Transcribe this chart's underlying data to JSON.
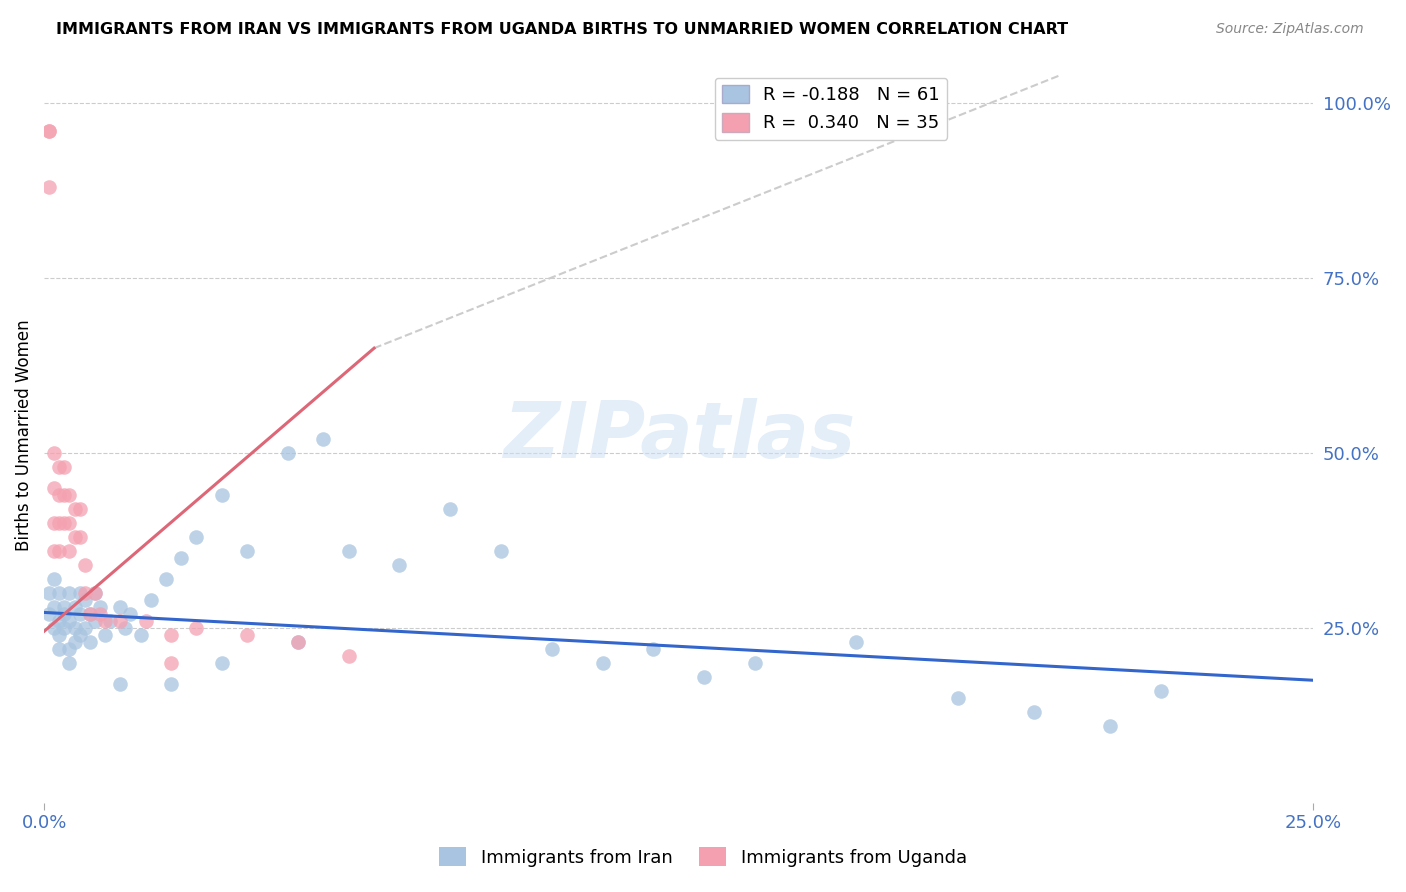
{
  "title": "IMMIGRANTS FROM IRAN VS IMMIGRANTS FROM UGANDA BIRTHS TO UNMARRIED WOMEN CORRELATION CHART",
  "source": "Source: ZipAtlas.com",
  "ylabel": "Births to Unmarried Women",
  "right_yticks": [
    "100.0%",
    "75.0%",
    "50.0%",
    "25.0%"
  ],
  "right_ytick_vals": [
    1.0,
    0.75,
    0.5,
    0.25
  ],
  "xlim": [
    0.0,
    0.25
  ],
  "ylim": [
    0.0,
    1.05
  ],
  "iran_color": "#a8c4e0",
  "uganda_color": "#f4a0b0",
  "iran_line_color": "#3366cc",
  "uganda_line_color": "#dd6677",
  "watermark_text": "ZIPatlas",
  "iran_scatter_x": [
    0.001,
    0.001,
    0.002,
    0.002,
    0.002,
    0.003,
    0.003,
    0.003,
    0.003,
    0.004,
    0.004,
    0.004,
    0.005,
    0.005,
    0.005,
    0.006,
    0.006,
    0.006,
    0.007,
    0.007,
    0.007,
    0.008,
    0.008,
    0.009,
    0.009,
    0.01,
    0.01,
    0.011,
    0.012,
    0.013,
    0.015,
    0.016,
    0.017,
    0.019,
    0.021,
    0.024,
    0.027,
    0.03,
    0.035,
    0.04,
    0.048,
    0.055,
    0.06,
    0.07,
    0.08,
    0.09,
    0.1,
    0.11,
    0.12,
    0.13,
    0.14,
    0.16,
    0.18,
    0.195,
    0.21,
    0.22,
    0.05,
    0.035,
    0.025,
    0.015,
    0.005
  ],
  "iran_scatter_y": [
    0.3,
    0.27,
    0.32,
    0.25,
    0.28,
    0.3,
    0.26,
    0.24,
    0.22,
    0.28,
    0.25,
    0.27,
    0.3,
    0.26,
    0.22,
    0.28,
    0.25,
    0.23,
    0.3,
    0.27,
    0.24,
    0.29,
    0.25,
    0.27,
    0.23,
    0.3,
    0.26,
    0.28,
    0.24,
    0.26,
    0.28,
    0.25,
    0.27,
    0.24,
    0.29,
    0.32,
    0.35,
    0.38,
    0.44,
    0.36,
    0.5,
    0.52,
    0.36,
    0.34,
    0.42,
    0.36,
    0.22,
    0.2,
    0.22,
    0.18,
    0.2,
    0.23,
    0.15,
    0.13,
    0.11,
    0.16,
    0.23,
    0.2,
    0.17,
    0.17,
    0.2
  ],
  "uganda_scatter_x": [
    0.001,
    0.001,
    0.001,
    0.002,
    0.002,
    0.002,
    0.002,
    0.003,
    0.003,
    0.003,
    0.003,
    0.004,
    0.004,
    0.004,
    0.005,
    0.005,
    0.005,
    0.006,
    0.006,
    0.007,
    0.007,
    0.008,
    0.008,
    0.009,
    0.01,
    0.011,
    0.012,
    0.015,
    0.02,
    0.025,
    0.025,
    0.03,
    0.04,
    0.05,
    0.06
  ],
  "uganda_scatter_y": [
    0.88,
    0.96,
    0.96,
    0.5,
    0.45,
    0.4,
    0.36,
    0.48,
    0.44,
    0.4,
    0.36,
    0.48,
    0.44,
    0.4,
    0.44,
    0.4,
    0.36,
    0.42,
    0.38,
    0.42,
    0.38,
    0.34,
    0.3,
    0.27,
    0.3,
    0.27,
    0.26,
    0.26,
    0.26,
    0.24,
    0.2,
    0.25,
    0.24,
    0.23,
    0.21
  ],
  "iran_line_x0": 0.0,
  "iran_line_y0": 0.272,
  "iran_line_x1": 0.25,
  "iran_line_y1": 0.175,
  "uganda_line_solid_x0": 0.0,
  "uganda_line_solid_y0": 0.245,
  "uganda_line_solid_x1": 0.065,
  "uganda_line_solid_y1": 0.65,
  "uganda_line_dash_x0": 0.065,
  "uganda_line_dash_y0": 0.65,
  "uganda_line_dash_x1": 0.2,
  "uganda_line_dash_y1": 1.04
}
